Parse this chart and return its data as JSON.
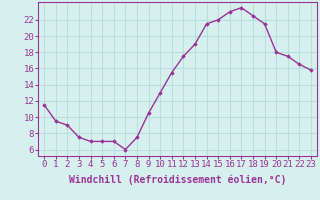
{
  "hours": [
    0,
    1,
    2,
    3,
    4,
    5,
    6,
    7,
    8,
    9,
    10,
    11,
    12,
    13,
    14,
    15,
    16,
    17,
    18,
    19,
    20,
    21,
    22,
    23
  ],
  "values": [
    11.5,
    9.5,
    9.0,
    7.5,
    7.0,
    7.0,
    7.0,
    6.0,
    7.5,
    10.5,
    13.0,
    15.5,
    17.5,
    19.0,
    21.5,
    22.0,
    23.0,
    23.5,
    22.5,
    21.5,
    18.0,
    17.5,
    16.5,
    15.8
  ],
  "line_color": "#993399",
  "marker": "D",
  "marker_size": 1.8,
  "bg_color": "#d6f0ee",
  "grid_color": "#b8dedd",
  "xlabel": "Windchill (Refroidissement éolien,°C)",
  "xlabel_fontsize": 7,
  "ylabel_ticks": [
    6,
    8,
    10,
    12,
    14,
    16,
    18,
    20,
    22
  ],
  "ylim": [
    5.2,
    24.2
  ],
  "xlim": [
    -0.5,
    23.5
  ],
  "tick_fontsize": 6.5,
  "linewidth": 1.0,
  "text_color": "#993399"
}
